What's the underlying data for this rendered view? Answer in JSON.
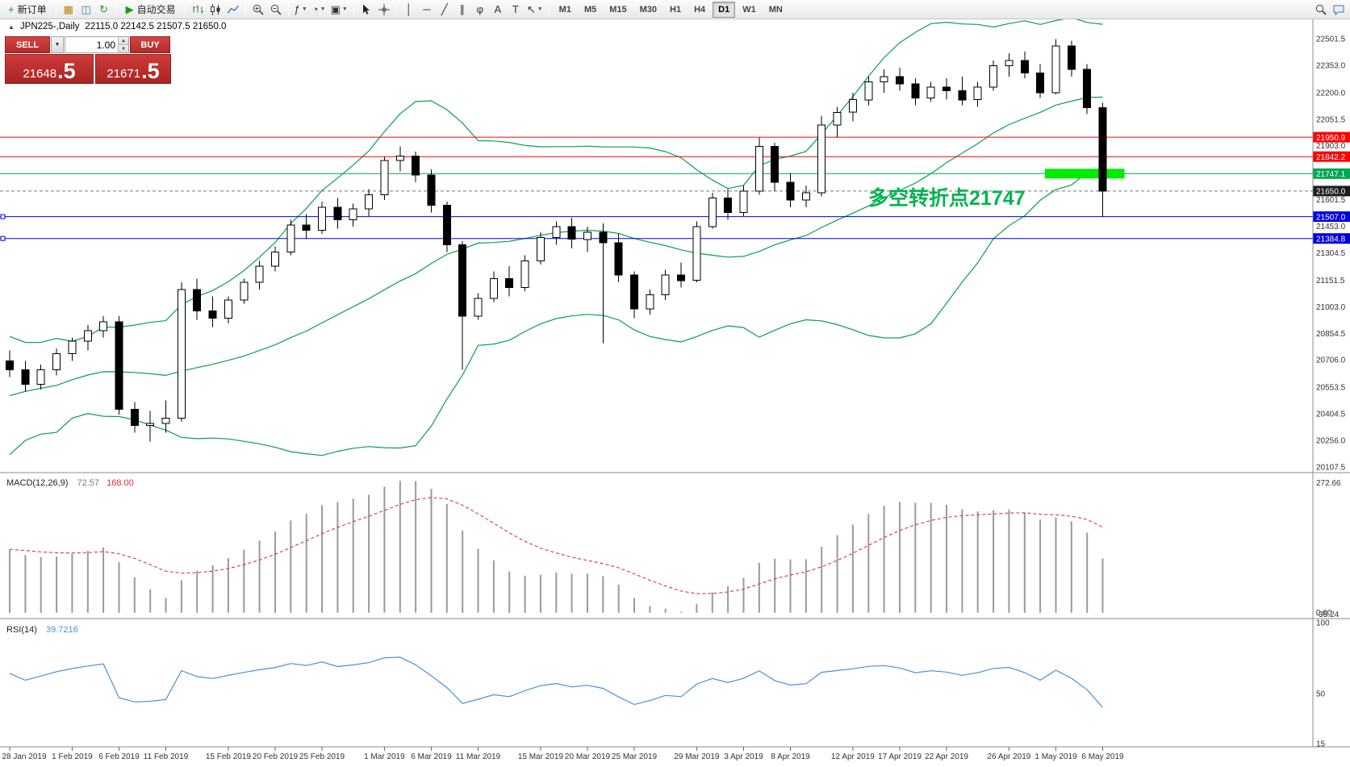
{
  "icons": {
    "dropdown": "▼",
    "spin_up": "▲",
    "spin_down": "▼",
    "collapse": "▲"
  },
  "toolbar": {
    "items": [
      {
        "name": "new-order-button",
        "label": "新订单",
        "glyph": "+",
        "glyph_color": "#189918"
      },
      {
        "type": "sep"
      },
      {
        "name": "new-chart-button",
        "glyph": "▦",
        "glyph_color": "#b8860b"
      },
      {
        "name": "profiles-button",
        "glyph": "◫",
        "glyph_color": "#4477aa"
      },
      {
        "name": "refresh-button",
        "glyph": "↻",
        "glyph_color": "#2a9a2a"
      },
      {
        "type": "sep"
      },
      {
        "name": "autotrading-button",
        "label": "自动交易",
        "glyph": "▶",
        "glyph_color": "#189918"
      },
      {
        "type": "sep"
      },
      {
        "name": "bar-chart-button",
        "svg": "bars"
      },
      {
        "name": "candlestick-chart-button",
        "svg": "candles"
      },
      {
        "name": "line-chart-button",
        "svg": "line"
      },
      {
        "type": "sep"
      },
      {
        "name": "zoom-in-button",
        "svg": "zoomin"
      },
      {
        "name": "zoom-out-button",
        "svg": "zoomout"
      },
      {
        "type": "sep"
      },
      {
        "name": "indicators-button",
        "glyph": "ƒ",
        "glyph_color": "#333",
        "dropdown": true
      },
      {
        "name": "periods-button",
        "glyph": "◔",
        "glyph_color": "#333",
        "dropdown": true
      },
      {
        "name": "templates-button",
        "glyph": "▣",
        "glyph_color": "#333",
        "dropdown": true
      },
      {
        "type": "sep"
      },
      {
        "name": "cursor-button",
        "svg": "cursor"
      },
      {
        "name": "crosshair-button",
        "svg": "cross"
      },
      {
        "type": "sep"
      },
      {
        "name": "vertical-line-button",
        "glyph": "│",
        "glyph_color": "#333"
      },
      {
        "name": "horizontal-line-button",
        "glyph": "─",
        "glyph_color": "#333"
      },
      {
        "name": "trendline-button",
        "glyph": "╱",
        "glyph_color": "#333"
      },
      {
        "name": "channel-button",
        "glyph": "∥",
        "glyph_color": "#333"
      },
      {
        "name": "fibonacci-button",
        "glyph": "φ",
        "glyph_color": "#333"
      },
      {
        "name": "text-button",
        "glyph": "A",
        "glyph_color": "#333"
      },
      {
        "name": "label-button",
        "glyph": "T",
        "glyph_color": "#333"
      },
      {
        "name": "arrows-button",
        "glyph": "↖",
        "glyph_color": "#333",
        "dropdown": true
      },
      {
        "type": "sep"
      }
    ],
    "timeframes": [
      "M1",
      "M5",
      "M15",
      "M30",
      "H1",
      "H4",
      "D1",
      "W1",
      "MN"
    ],
    "active_timeframe": "D1",
    "right_items": [
      {
        "name": "search-button",
        "svg": "search"
      },
      {
        "name": "chat-button",
        "svg": "chat"
      }
    ]
  },
  "symbol_bar": {
    "symbol_period": "JPN225-,Daily",
    "ohlc": "22115.0 22142.5 21507.5 21650.0"
  },
  "trade_panel": {
    "sell_label": "SELL",
    "buy_label": "BUY",
    "volume": "1.00",
    "sell_price_main": "21648",
    "sell_price_pip": ".5",
    "buy_price_main": "21671",
    "buy_price_pip": ".5"
  },
  "annotation": {
    "text": "多空转折点21747",
    "color": "#00b44e"
  },
  "highlight_band": {
    "from_candle": 66.3,
    "to_candle": 71.4,
    "price": 21747.0,
    "color": "#00ec00"
  },
  "hlines": [
    {
      "label": "21950.9",
      "price": 21950.9,
      "color": "#ff0000",
      "handle": false
    },
    {
      "label": "21842.2",
      "price": 21842.2,
      "color": "#ff0000",
      "handle": false
    },
    {
      "label": "21747.1",
      "price": 21747.1,
      "color": "#00a651",
      "handle": false
    },
    {
      "label": "21507.0",
      "price": 21507.0,
      "color": "#0000e0",
      "handle": true
    },
    {
      "label": "21384.8",
      "price": 21384.8,
      "color": "#0000e0",
      "handle": true
    }
  ],
  "current_price": {
    "label": "21650.0",
    "value": 21650.0
  },
  "price_ticks": [
    "22501.5",
    "22353.0",
    "22200.0",
    "22051.5",
    "21903.0",
    "21754.5",
    "21601.5",
    "21453.0",
    "21304.5",
    "21151.5",
    "21003.0",
    "20854.5",
    "20706.0",
    "20553.5",
    "20404.5",
    "20256.0",
    "20107.5"
  ],
  "macd": {
    "name": "MACD(12,26,9)",
    "value_main": "72.57",
    "value_signal": "168.00",
    "ticks": [
      "272.66",
      "0.00",
      "-35.24"
    ]
  },
  "rsi": {
    "name": "RSI(14)",
    "value": "39.7216",
    "ticks": [
      "100",
      "50",
      "15"
    ]
  },
  "dates_axis": [
    {
      "i": 0,
      "label": "28 Jan 2019"
    },
    {
      "i": 4,
      "label": "1 Feb 2019"
    },
    {
      "i": 7,
      "label": "6 Feb 2019"
    },
    {
      "i": 10,
      "label": "11 Feb 2019"
    },
    {
      "i": 14,
      "label": "15 Feb 2019"
    },
    {
      "i": 17,
      "label": "20 Feb 2019"
    },
    {
      "i": 20,
      "label": "25 Feb 2019"
    },
    {
      "i": 24,
      "label": "1 Mar 2019"
    },
    {
      "i": 27,
      "label": "6 Mar 2019"
    },
    {
      "i": 30,
      "label": "11 Mar 2019"
    },
    {
      "i": 34,
      "label": "15 Mar 2019"
    },
    {
      "i": 37,
      "label": "20 Mar 2019"
    },
    {
      "i": 40,
      "label": "25 Mar 2019"
    },
    {
      "i": 44,
      "label": "29 Mar 2019"
    },
    {
      "i": 47,
      "label": "3 Apr 2019"
    },
    {
      "i": 50,
      "label": "8 Apr 2019"
    },
    {
      "i": 54,
      "label": "12 Apr 2019"
    },
    {
      "i": 57,
      "label": "17 Apr 2019"
    },
    {
      "i": 60,
      "label": "22 Apr 2019"
    },
    {
      "i": 64,
      "label": "26 Apr 2019"
    },
    {
      "i": 67,
      "label": "1 May 2019"
    },
    {
      "i": 70,
      "label": "6 May 2019"
    }
  ],
  "colors": {
    "bollinger": "#0aa04a",
    "macd_bar": "#9a9a9a",
    "macd_signal": "#e03232",
    "rsi_line": "#4a90d9",
    "current_price_label_bg": "#1c1c1c",
    "candle_up_fill": "#ffffff",
    "candle_down_fill": "#000000",
    "candle_border": "#000000"
  },
  "chart_data": {
    "type": "candlestick",
    "symbol": "JPN225-",
    "timeframe": "Daily",
    "ohlc_last": {
      "open": 22115.0,
      "high": 22142.5,
      "low": 21507.5,
      "close": 21650.0
    },
    "indicators": {
      "bollinger": {
        "period": 20,
        "deviation": 2
      },
      "macd": {
        "fast": 12,
        "slow": 26,
        "signal": 9
      },
      "rsi": {
        "period": 14
      }
    },
    "y_axis_range": [
      20107.5,
      22501.5
    ],
    "candles": [
      [
        20700,
        20760,
        20610,
        20650
      ],
      [
        20650,
        20700,
        20530,
        20570
      ],
      [
        20570,
        20680,
        20540,
        20650
      ],
      [
        20650,
        20770,
        20620,
        20740
      ],
      [
        20740,
        20830,
        20700,
        20810
      ],
      [
        20810,
        20900,
        20760,
        20870
      ],
      [
        20870,
        20950,
        20830,
        20920
      ],
      [
        20920,
        20950,
        20400,
        20430
      ],
      [
        20430,
        20470,
        20300,
        20340
      ],
      [
        20340,
        20420,
        20250,
        20350
      ],
      [
        20350,
        20480,
        20300,
        20380
      ],
      [
        20380,
        21140,
        20360,
        21100
      ],
      [
        21100,
        21160,
        20930,
        20980
      ],
      [
        20980,
        21060,
        20890,
        20940
      ],
      [
        20940,
        21060,
        20910,
        21040
      ],
      [
        21040,
        21160,
        21020,
        21140
      ],
      [
        21140,
        21260,
        21100,
        21230
      ],
      [
        21230,
        21340,
        21200,
        21310
      ],
      [
        21310,
        21490,
        21290,
        21460
      ],
      [
        21460,
        21520,
        21380,
        21430
      ],
      [
        21430,
        21590,
        21410,
        21560
      ],
      [
        21560,
        21610,
        21440,
        21490
      ],
      [
        21490,
        21580,
        21450,
        21550
      ],
      [
        21550,
        21660,
        21510,
        21630
      ],
      [
        21630,
        21840,
        21600,
        21820
      ],
      [
        21820,
        21900,
        21760,
        21845
      ],
      [
        21845,
        21870,
        21700,
        21740
      ],
      [
        21740,
        21770,
        21530,
        21570
      ],
      [
        21570,
        21590,
        21310,
        21350
      ],
      [
        21350,
        21370,
        20650,
        20950
      ],
      [
        20950,
        21080,
        20930,
        21050
      ],
      [
        21050,
        21200,
        21030,
        21160
      ],
      [
        21160,
        21230,
        21060,
        21110
      ],
      [
        21110,
        21290,
        21090,
        21260
      ],
      [
        21260,
        21420,
        21240,
        21390
      ],
      [
        21390,
        21480,
        21350,
        21450
      ],
      [
        21450,
        21500,
        21330,
        21380
      ],
      [
        21380,
        21450,
        21310,
        21420
      ],
      [
        21420,
        21470,
        20800,
        21360
      ],
      [
        21360,
        21410,
        21140,
        21180
      ],
      [
        21180,
        21200,
        20940,
        20990
      ],
      [
        20990,
        21100,
        20960,
        21070
      ],
      [
        21070,
        21210,
        21040,
        21180
      ],
      [
        21180,
        21250,
        21110,
        21150
      ],
      [
        21150,
        21480,
        21140,
        21450
      ],
      [
        21450,
        21640,
        21440,
        21610
      ],
      [
        21610,
        21660,
        21490,
        21530
      ],
      [
        21530,
        21680,
        21510,
        21650
      ],
      [
        21650,
        21950,
        21630,
        21900
      ],
      [
        21900,
        21920,
        21650,
        21700
      ],
      [
        21700,
        21750,
        21560,
        21600
      ],
      [
        21600,
        21680,
        21560,
        21640
      ],
      [
        21640,
        22070,
        21620,
        22020
      ],
      [
        22020,
        22120,
        21950,
        22090
      ],
      [
        22090,
        22200,
        22040,
        22160
      ],
      [
        22160,
        22290,
        22130,
        22260
      ],
      [
        22260,
        22330,
        22200,
        22290
      ],
      [
        22290,
        22340,
        22210,
        22250
      ],
      [
        22250,
        22280,
        22130,
        22170
      ],
      [
        22170,
        22260,
        22150,
        22230
      ],
      [
        22230,
        22280,
        22160,
        22210
      ],
      [
        22210,
        22290,
        22130,
        22160
      ],
      [
        22160,
        22260,
        22120,
        22230
      ],
      [
        22230,
        22380,
        22210,
        22350
      ],
      [
        22350,
        22420,
        22290,
        22380
      ],
      [
        22380,
        22430,
        22280,
        22310
      ],
      [
        22310,
        22360,
        22170,
        22200
      ],
      [
        22200,
        22500,
        22190,
        22460
      ],
      [
        22460,
        22490,
        22290,
        22330
      ],
      [
        22330,
        22360,
        22080,
        22115
      ],
      [
        22115,
        22142.5,
        21507.5,
        21650
      ]
    ],
    "prehistory_closes_for_indicator_warmup": [
      19950,
      20000,
      20100,
      20050,
      20000,
      20150,
      20250,
      20100,
      20300,
      20420,
      20170,
      20350,
      20550,
      20440,
      20410,
      20500,
      20560,
      20620,
      20590,
      20570,
      20600,
      20650,
      20620,
      20680,
      20650,
      20700
    ]
  }
}
